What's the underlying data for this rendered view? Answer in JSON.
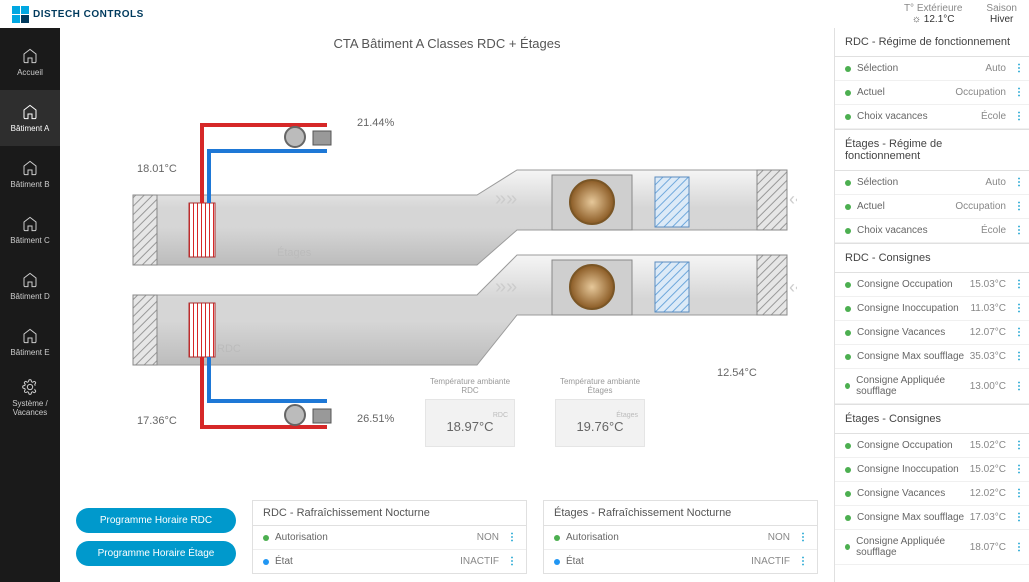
{
  "logo": "DISTECH CONTROLS",
  "header": {
    "temp_ext_label": "T° Extérieure",
    "temp_ext_value": "☼ 12.1°C",
    "season_label": "Saison",
    "season_value": "Hiver"
  },
  "sidebar": [
    {
      "label": "Accueil",
      "icon": "home"
    },
    {
      "label": "Bâtiment A",
      "icon": "home",
      "active": true
    },
    {
      "label": "Bâtiment B",
      "icon": "home"
    },
    {
      "label": "Bâtiment C",
      "icon": "home"
    },
    {
      "label": "Bâtiment D",
      "icon": "home"
    },
    {
      "label": "Bâtiment E",
      "icon": "home"
    },
    {
      "label": "Système / Vacances",
      "icon": "gear"
    }
  ],
  "title": "CTA Bâtiment A Classes RDC + Étages",
  "diagram": {
    "t_left_top": "18.01°C",
    "t_left_bottom": "17.36°C",
    "pct_top": "21.44%",
    "pct_bottom": "26.51%",
    "t_right": "12.54°C",
    "label_etages": "Étages",
    "label_rdc": "RDC",
    "colors": {
      "hot": "#d62828",
      "cold": "#1e78d6",
      "duct": "#d0d0d0",
      "duct_stroke": "#9b9b9b",
      "coil": "#c07830",
      "filter": "#6fa8dc",
      "valve": "#888"
    }
  },
  "temp_boxes": [
    {
      "header": "Température ambiante RDC",
      "sub": "RDC",
      "value": "18.97°C"
    },
    {
      "header": "Température ambiante Étages",
      "sub": "Étages",
      "value": "19.76°C"
    }
  ],
  "buttons": {
    "prog_rdc": "Programme Horaire RDC",
    "prog_etage": "Programme Horaire Étage"
  },
  "panels": [
    {
      "title": "RDC - Rafraîchissement Nocturne",
      "rows": [
        {
          "dot": "green",
          "label": "Autorisation",
          "value": "NON"
        },
        {
          "dot": "blue",
          "label": "État",
          "value": "INACTIF"
        }
      ]
    },
    {
      "title": "Étages - Rafraîchissement Nocturne",
      "rows": [
        {
          "dot": "green",
          "label": "Autorisation",
          "value": "NON"
        },
        {
          "dot": "blue",
          "label": "État",
          "value": "INACTIF"
        }
      ]
    }
  ],
  "right_groups": [
    {
      "title": "RDC - Régime de fonctionnement",
      "rows": [
        {
          "dot": "green",
          "label": "Sélection",
          "value": "Auto"
        },
        {
          "dot": "green",
          "label": "Actuel",
          "value": "Occupation"
        },
        {
          "dot": "green",
          "label": "Choix vacances",
          "value": "École"
        }
      ]
    },
    {
      "title": "Étages - Régime de fonctionnement",
      "rows": [
        {
          "dot": "green",
          "label": "Sélection",
          "value": "Auto"
        },
        {
          "dot": "green",
          "label": "Actuel",
          "value": "Occupation"
        },
        {
          "dot": "green",
          "label": "Choix vacances",
          "value": "École"
        }
      ]
    },
    {
      "title": "RDC - Consignes",
      "rows": [
        {
          "dot": "green",
          "label": "Consigne Occupation",
          "value": "15.03°C"
        },
        {
          "dot": "green",
          "label": "Consigne Inoccupation",
          "value": "11.03°C"
        },
        {
          "dot": "green",
          "label": "Consigne Vacances",
          "value": "12.07°C"
        },
        {
          "dot": "green",
          "label": "Consigne Max soufflage",
          "value": "35.03°C"
        },
        {
          "dot": "green",
          "label": "Consigne Appliquée soufflage",
          "value": "13.00°C"
        }
      ]
    },
    {
      "title": "Étages - Consignes",
      "rows": [
        {
          "dot": "green",
          "label": "Consigne Occupation",
          "value": "15.02°C"
        },
        {
          "dot": "green",
          "label": "Consigne Inoccupation",
          "value": "15.02°C"
        },
        {
          "dot": "green",
          "label": "Consigne Vacances",
          "value": "12.02°C"
        },
        {
          "dot": "green",
          "label": "Consigne Max soufflage",
          "value": "17.03°C"
        },
        {
          "dot": "green",
          "label": "Consigne Appliquée soufflage",
          "value": "18.07°C"
        }
      ]
    }
  ]
}
